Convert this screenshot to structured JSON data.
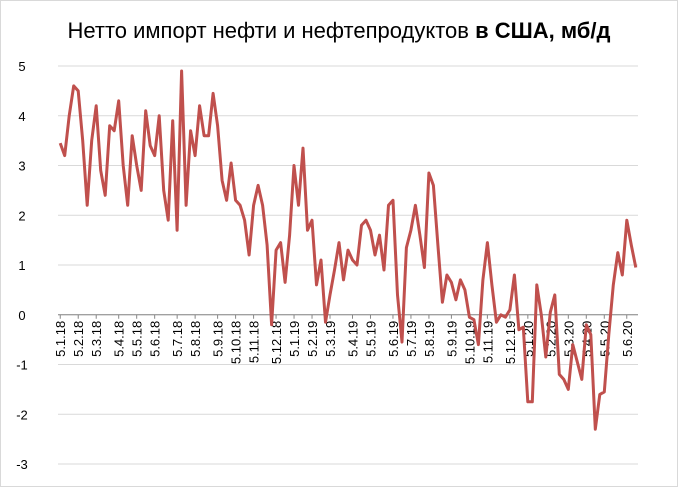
{
  "chart_data": {
    "type": "line",
    "title": "Нетто импорт нефти и нефтепродуктов ",
    "title_bold": "в США, мб/д",
    "categories": [
      "5.1.18",
      null,
      null,
      null,
      "5.2.18",
      null,
      null,
      null,
      "5.3.18",
      null,
      null,
      null,
      null,
      "5.4.18",
      null,
      null,
      null,
      "5.5.18",
      null,
      null,
      null,
      "5.6.18",
      null,
      null,
      null,
      null,
      "5.7.18",
      null,
      null,
      null,
      "5.8.18",
      null,
      null,
      null,
      null,
      "5.9.18",
      null,
      null,
      null,
      "5.10.18",
      null,
      null,
      null,
      "5.11.18",
      null,
      null,
      null,
      null,
      "5.12.18",
      null,
      null,
      null,
      "5.1.19",
      null,
      null,
      null,
      "5.2.19",
      null,
      null,
      null,
      "5.3.19",
      null,
      null,
      null,
      null,
      "5.4.19",
      null,
      null,
      null,
      "5.5.19",
      null,
      null,
      null,
      null,
      "5.6.19",
      null,
      null,
      null,
      "5.7.19",
      null,
      null,
      null,
      "5.8.19",
      null,
      null,
      null,
      null,
      "5.9.19",
      null,
      null,
      null,
      "5.10.19",
      null,
      null,
      null,
      "5.11.19",
      null,
      null,
      null,
      null,
      "5.12.19",
      null,
      null,
      null,
      "5.1.20",
      null,
      null,
      null,
      null,
      "5.2.20",
      null,
      null,
      null,
      "5.3.20",
      null,
      null,
      null,
      "5.4.20",
      null,
      null,
      null,
      "5.5.20",
      null,
      null,
      null,
      null,
      "5.6.20",
      null,
      null
    ],
    "series": [
      {
        "color": "#c0504d",
        "values": [
          3.45,
          3.2,
          4.0,
          4.6,
          4.5,
          3.5,
          2.2,
          3.5,
          4.2,
          2.9,
          2.4,
          3.8,
          3.7,
          4.3,
          3.0,
          2.2,
          3.6,
          3.0,
          2.5,
          4.1,
          3.4,
          3.2,
          4.0,
          2.5,
          1.9,
          3.9,
          1.7,
          4.9,
          2.2,
          3.7,
          3.2,
          4.2,
          3.6,
          3.6,
          4.45,
          3.8,
          2.7,
          2.3,
          3.05,
          2.3,
          2.2,
          1.9,
          1.2,
          2.2,
          2.6,
          2.2,
          1.4,
          -0.2,
          1.3,
          1.45,
          0.65,
          1.6,
          3.0,
          2.2,
          3.35,
          1.7,
          1.9,
          0.6,
          1.1,
          -0.15,
          0.4,
          0.9,
          1.45,
          0.7,
          1.3,
          1.1,
          1.0,
          1.8,
          1.9,
          1.7,
          1.2,
          1.6,
          0.9,
          2.2,
          2.3,
          0.4,
          -0.55,
          1.35,
          1.7,
          2.2,
          1.6,
          0.95,
          2.85,
          2.6,
          1.4,
          0.25,
          0.8,
          0.65,
          0.3,
          0.7,
          0.5,
          -0.05,
          -0.1,
          -0.6,
          0.7,
          1.45,
          0.6,
          -0.15,
          0.0,
          -0.05,
          0.1,
          0.8,
          -0.3,
          -0.25,
          -1.75,
          -1.75,
          0.6,
          0.0,
          -0.85,
          0.05,
          0.4,
          -1.2,
          -1.3,
          -1.5,
          -0.6,
          -0.95,
          -1.3,
          -0.2,
          -0.4,
          -2.3,
          -1.6,
          -1.55,
          -0.4,
          0.6,
          1.25,
          0.8,
          1.9,
          1.4,
          0.95
        ]
      }
    ],
    "ylim": [
      -3,
      5
    ],
    "yticks": [
      -3,
      -2,
      -1,
      0,
      1,
      2,
      3,
      4,
      5
    ],
    "grid": true
  }
}
